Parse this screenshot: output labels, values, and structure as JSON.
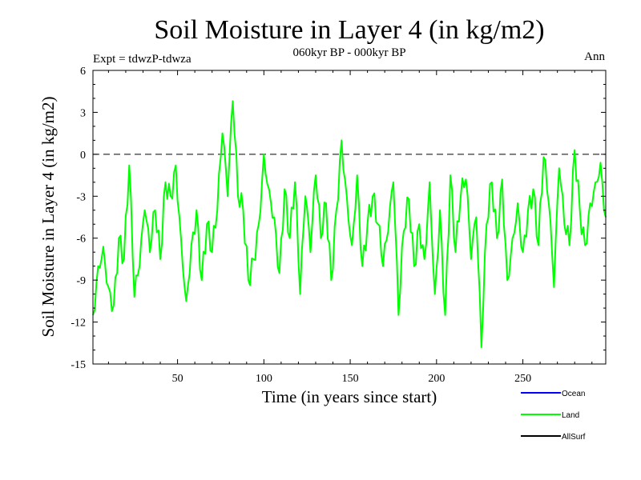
{
  "chart_data": {
    "type": "line",
    "title": "Soil Moisture in Layer 4 (in kg/m2)",
    "subtitle": "060kyr BP - 000kyr BP",
    "experiment_label": "Expt = tdwzP-tdwza",
    "season_label": "Ann",
    "xlabel": "Time (in years since start)",
    "ylabel": "Soil Moisture in Layer 4 (in kg/m2)",
    "xlim": [
      1,
      298
    ],
    "ylim": [
      -15,
      6
    ],
    "x_ticks": [
      50,
      100,
      150,
      200,
      250
    ],
    "y_ticks": [
      6,
      3,
      0,
      -3,
      -6,
      -9,
      -12,
      -15
    ],
    "reference_line": {
      "y": 0,
      "style": "dashed"
    },
    "legend_position": "bottom-right",
    "series": [
      {
        "name": "Ocean",
        "color": "#0000ff",
        "x": [],
        "y": []
      },
      {
        "name": "Land",
        "color": "#00ff00",
        "x": [
          1,
          4,
          7,
          10,
          13,
          16,
          19,
          22,
          25,
          28,
          31,
          34,
          37,
          40,
          43,
          46,
          49,
          52,
          55,
          58,
          61,
          64,
          67,
          70,
          73,
          76,
          79,
          82,
          85,
          88,
          91,
          94,
          97,
          100,
          103,
          106,
          109,
          112,
          115,
          118,
          121,
          124,
          127,
          130,
          133,
          136,
          139,
          142,
          145,
          148,
          151,
          154,
          157,
          160,
          163,
          166,
          169,
          172,
          175,
          178,
          181,
          184,
          187,
          190,
          193,
          196,
          199,
          202,
          205,
          208,
          211,
          214,
          217,
          220,
          223,
          226,
          229,
          232,
          235,
          238,
          241,
          244,
          247,
          250,
          253,
          256,
          259,
          262,
          265,
          268,
          271,
          274,
          277,
          280,
          283,
          286,
          289,
          292,
          295,
          298
        ],
        "y": [
          -11.5,
          -8,
          -6.6,
          -9.5,
          -10.8,
          -6,
          -7.5,
          -0.8,
          -10.2,
          -8,
          -4,
          -7,
          -4,
          -7.5,
          -2,
          -3,
          -0.8,
          -6,
          -10.5,
          -6.5,
          -4,
          -9,
          -5,
          -7,
          -4,
          1.5,
          -3,
          3.8,
          -3,
          -4,
          -9,
          -7.5,
          -5,
          0,
          -2.5,
          -4.5,
          -8.5,
          -2.5,
          -6,
          -2,
          -10,
          -3,
          -7,
          -1.5,
          -6,
          -3.5,
          -9,
          -4,
          1,
          -3,
          -6.5,
          -1.5,
          -8,
          -5,
          -3,
          -5,
          -8,
          -5.5,
          -2,
          -11.5,
          -5.5,
          -3.2,
          -8,
          -5,
          -7.5,
          -2,
          -10,
          -4,
          -11.5,
          -1.5,
          -7,
          -3,
          -1.8,
          -7.5,
          -4.5,
          -13.8,
          -5,
          -2,
          -6,
          -1.8,
          -9,
          -6,
          -3.5,
          -7,
          -4,
          -2.5,
          -6.5,
          -0.2,
          -3.5,
          -9.5,
          -1,
          -5,
          -6.5,
          0.3,
          -4,
          -6.5,
          -3.5,
          -2,
          -0.6,
          -4.5
        ]
      },
      {
        "name": "AllSurf",
        "color": "#000000",
        "x": [],
        "y": []
      }
    ]
  }
}
